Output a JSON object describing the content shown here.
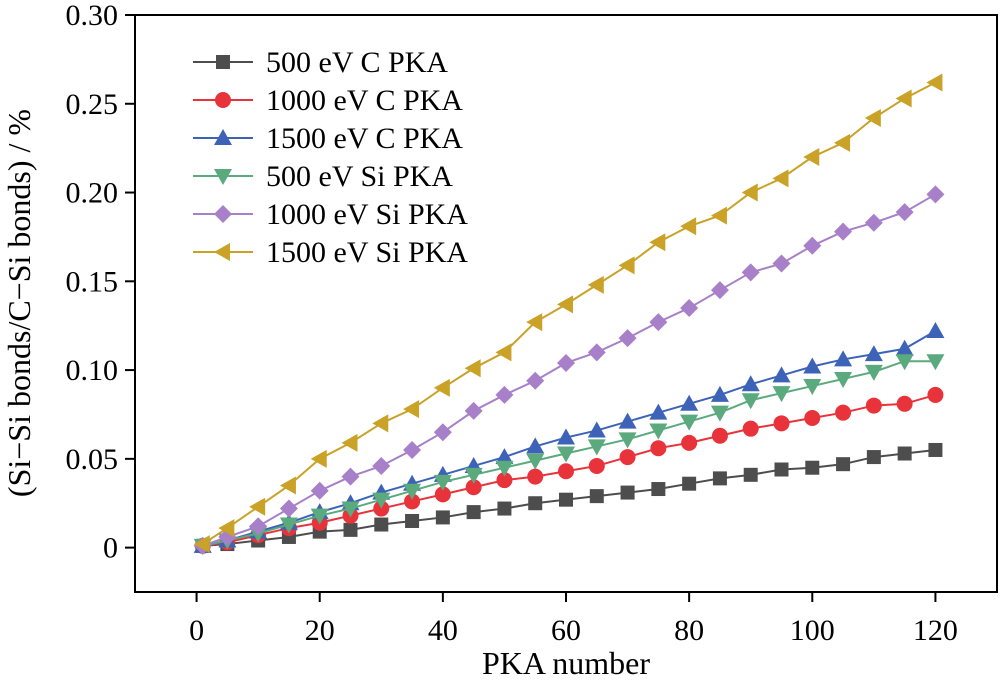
{
  "chart_data": {
    "type": "line",
    "xlabel": "PKA number",
    "ylabel": "(Si−Si bonds/C−Si bonds) / %",
    "xlim": [
      -10,
      130
    ],
    "ylim": [
      -0.025,
      0.3
    ],
    "xticks": [
      0,
      20,
      40,
      60,
      80,
      100,
      120
    ],
    "xtick_labels": [
      "0",
      "20",
      "40",
      "60",
      "80",
      "100",
      "120"
    ],
    "yticks": [
      0,
      0.05,
      0.1,
      0.15,
      0.2,
      0.25,
      0.3
    ],
    "ytick_labels": [
      "0",
      "0.05",
      "0.10",
      "0.15",
      "0.20",
      "0.25",
      "0.30"
    ],
    "grid": false,
    "legend_position": "top-left",
    "x": [
      1,
      5,
      10,
      15,
      20,
      25,
      30,
      35,
      40,
      45,
      50,
      55,
      60,
      65,
      70,
      75,
      80,
      85,
      90,
      95,
      100,
      105,
      110,
      115,
      120
    ],
    "series": [
      {
        "name": "500 eV C PKA",
        "color": "#4d4d4d",
        "marker": "square",
        "values": [
          0.001,
          0.002,
          0.004,
          0.006,
          0.009,
          0.01,
          0.013,
          0.015,
          0.017,
          0.02,
          0.022,
          0.025,
          0.027,
          0.029,
          0.031,
          0.033,
          0.036,
          0.039,
          0.041,
          0.044,
          0.045,
          0.047,
          0.051,
          0.053,
          0.055
        ]
      },
      {
        "name": "1000 eV C PKA",
        "color": "#e8333b",
        "marker": "circle",
        "values": [
          0.001,
          0.003,
          0.007,
          0.011,
          0.014,
          0.018,
          0.022,
          0.026,
          0.03,
          0.034,
          0.038,
          0.04,
          0.043,
          0.046,
          0.051,
          0.056,
          0.059,
          0.063,
          0.067,
          0.07,
          0.073,
          0.076,
          0.08,
          0.081,
          0.086
        ]
      },
      {
        "name": "1500 eV C PKA",
        "color": "#3d63b8",
        "marker": "triangle-up",
        "values": [
          0.001,
          0.004,
          0.009,
          0.014,
          0.02,
          0.025,
          0.031,
          0.036,
          0.041,
          0.046,
          0.051,
          0.057,
          0.062,
          0.066,
          0.071,
          0.076,
          0.081,
          0.086,
          0.092,
          0.097,
          0.102,
          0.106,
          0.109,
          0.112,
          0.122
        ]
      },
      {
        "name": "500 eV Si PKA",
        "color": "#5aaa7d",
        "marker": "triangle-down",
        "values": [
          0.001,
          0.004,
          0.008,
          0.013,
          0.018,
          0.022,
          0.027,
          0.032,
          0.037,
          0.041,
          0.045,
          0.049,
          0.053,
          0.057,
          0.061,
          0.066,
          0.071,
          0.076,
          0.083,
          0.087,
          0.091,
          0.095,
          0.099,
          0.105,
          0.105
        ]
      },
      {
        "name": "1000 eV Si PKA",
        "color": "#a780c9",
        "marker": "diamond",
        "values": [
          0.001,
          0.006,
          0.012,
          0.022,
          0.032,
          0.04,
          0.046,
          0.055,
          0.065,
          0.077,
          0.086,
          0.094,
          0.104,
          0.11,
          0.118,
          0.127,
          0.135,
          0.145,
          0.155,
          0.16,
          0.17,
          0.178,
          0.183,
          0.189,
          0.199
        ]
      },
      {
        "name": "1500 eV Si PKA",
        "color": "#c9a227",
        "marker": "triangle-left",
        "values": [
          0.002,
          0.011,
          0.023,
          0.035,
          0.05,
          0.059,
          0.07,
          0.078,
          0.09,
          0.101,
          0.11,
          0.127,
          0.137,
          0.148,
          0.159,
          0.172,
          0.181,
          0.187,
          0.2,
          0.208,
          0.22,
          0.228,
          0.242,
          0.253,
          0.262
        ]
      }
    ]
  }
}
